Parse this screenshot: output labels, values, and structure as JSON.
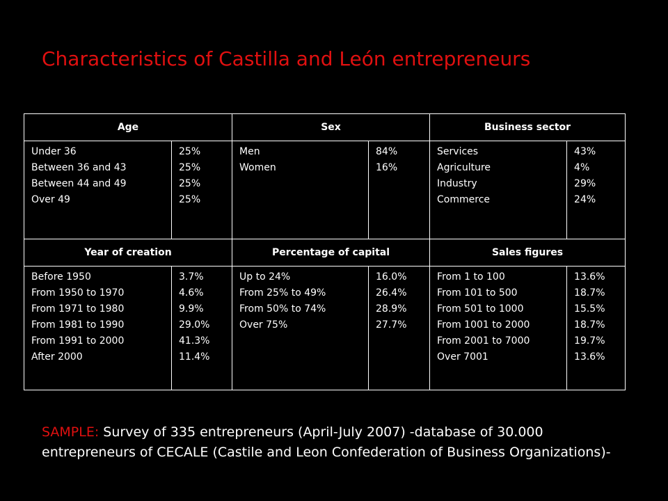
{
  "title": "Characteristics of Castilla and León entrepreneurs",
  "sections_top": [
    {
      "header": "Age",
      "labels": [
        "Under 36",
        "Between 36 and 43",
        "Between 44 and 49",
        "Over 49"
      ],
      "values": [
        "25%",
        "25%",
        "25%",
        "25%"
      ]
    },
    {
      "header": "Sex",
      "labels": [
        "Men",
        "Women"
      ],
      "values": [
        "84%",
        "16%"
      ]
    },
    {
      "header": "Business sector",
      "labels": [
        "Services",
        "Agriculture",
        "Industry",
        "Commerce"
      ],
      "values": [
        "43%",
        "4%",
        "29%",
        "24%"
      ]
    }
  ],
  "sections_bottom": [
    {
      "header": "Year of creation",
      "labels": [
        "Before 1950",
        "From 1950 to 1970",
        "From 1971 to 1980",
        "From 1981 to 1990",
        "From 1991 to 2000",
        "After 2000"
      ],
      "values": [
        "3.7%",
        "4.6%",
        "9.9%",
        "29.0%",
        "41.3%",
        "11.4%"
      ]
    },
    {
      "header": "Percentage of capital",
      "labels": [
        "Up to 24%",
        "From 25% to 49%",
        "From 50% to 74%",
        "Over 75%"
      ],
      "values": [
        "16.0%",
        "26.4%",
        "28.9%",
        "27.7%"
      ]
    },
    {
      "header": "Sales figures",
      "labels": [
        "From 1 to 100",
        "From 101 to 500",
        "From 501 to 1000",
        "From 1001 to 2000",
        "From 2001 to 7000",
        "Over 7001"
      ],
      "values": [
        "13.6%",
        "18.7%",
        "15.5%",
        "18.7%",
        "19.7%",
        "13.6%"
      ]
    }
  ],
  "sample": {
    "label": "SAMPLE:",
    "text": " Survey of 335 entrepreneurs (April-July 2007) -database of 30.000 entrepreneurs of CECALE (Castile and Leon Confederation of Business Organizations)-"
  },
  "colors": {
    "background": "#000000",
    "accent": "#e01010",
    "text": "#ffffff"
  }
}
